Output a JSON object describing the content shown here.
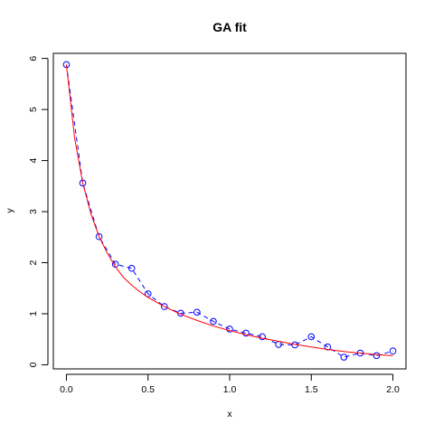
{
  "chart_data": {
    "type": "scatter",
    "title": "GA fit",
    "xlabel": "x",
    "ylabel": "y",
    "xlim": [
      -0.08,
      2.08
    ],
    "ylim": [
      -0.08,
      6.1
    ],
    "x_ticks": [
      "0.0",
      "0.5",
      "1.0",
      "1.5",
      "2.0"
    ],
    "y_ticks": [
      "0",
      "1",
      "2",
      "3",
      "4",
      "5",
      "6"
    ],
    "grid": false,
    "series": [
      {
        "kind": "points-dashed",
        "color": "#0000ff",
        "x": [
          0.0,
          0.1,
          0.2,
          0.3,
          0.4,
          0.5,
          0.6,
          0.7,
          0.8,
          0.9,
          1.0,
          1.1,
          1.2,
          1.3,
          1.4,
          1.5,
          1.6,
          1.7,
          1.8,
          1.9,
          2.0
        ],
        "y": [
          5.88,
          3.56,
          2.51,
          1.97,
          1.89,
          1.39,
          1.14,
          1.01,
          1.03,
          0.85,
          0.7,
          0.62,
          0.55,
          0.4,
          0.39,
          0.55,
          0.35,
          0.15,
          0.23,
          0.18,
          0.27
        ]
      },
      {
        "kind": "fitted-curve",
        "color": "#ff0000",
        "x": [
          0.0,
          0.05,
          0.1,
          0.15,
          0.2,
          0.25,
          0.3,
          0.35,
          0.4,
          0.45,
          0.5,
          0.6,
          0.7,
          0.8,
          0.9,
          1.0,
          1.1,
          1.2,
          1.3,
          1.4,
          1.5,
          1.6,
          1.7,
          1.8,
          1.9,
          2.0
        ],
        "y": [
          5.88,
          4.45,
          3.56,
          2.96,
          2.51,
          2.19,
          1.92,
          1.71,
          1.56,
          1.43,
          1.32,
          1.14,
          0.99,
          0.87,
          0.76,
          0.67,
          0.59,
          0.52,
          0.46,
          0.4,
          0.35,
          0.3,
          0.26,
          0.23,
          0.2,
          0.18
        ]
      }
    ]
  }
}
